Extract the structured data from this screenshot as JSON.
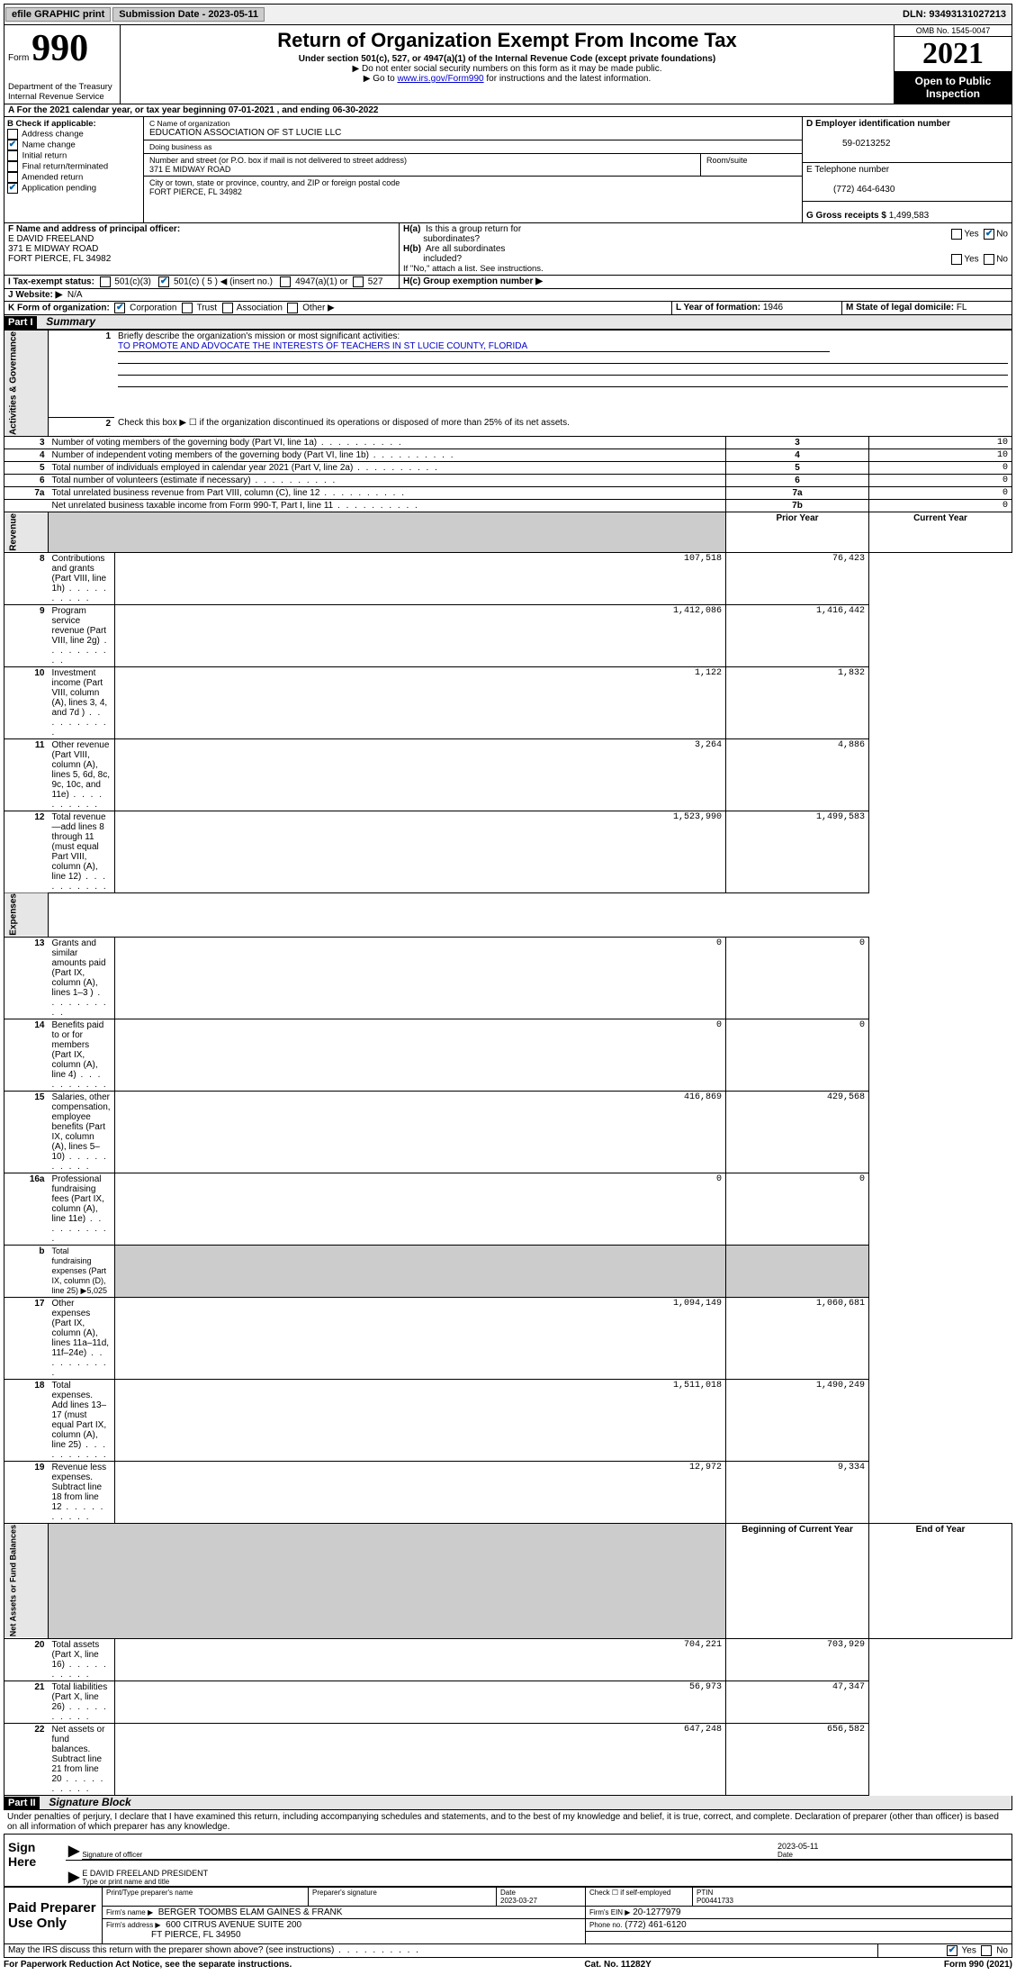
{
  "topbar": {
    "efile": "efile GRAPHIC print",
    "subdate_label": "Submission Date - 2023-05-11",
    "dln": "DLN: 93493131027213"
  },
  "header": {
    "form_word": "Form",
    "form_num": "990",
    "dept": "Department of the Treasury",
    "irs": "Internal Revenue Service",
    "title": "Return of Organization Exempt From Income Tax",
    "sub": "Under section 501(c), 527, or 4947(a)(1) of the Internal Revenue Code (except private foundations)",
    "note1": "▶ Do not enter social security numbers on this form as it may be made public.",
    "note2_pre": "▶ Go to ",
    "note2_link": "www.irs.gov/Form990",
    "note2_post": " for instructions and the latest information.",
    "omb": "OMB No. 1545-0047",
    "taxyear": "2021",
    "open1": "Open to Public",
    "open2": "Inspection"
  },
  "rowA": "A For the 2021 calendar year, or tax year beginning 07-01-2021   , and ending 06-30-2022",
  "colB": {
    "header": "B Check if applicable:",
    "items": [
      {
        "label": "Address change",
        "checked": false
      },
      {
        "label": "Name change",
        "checked": true
      },
      {
        "label": "Initial return",
        "checked": false
      },
      {
        "label": "Final return/terminated",
        "checked": false
      },
      {
        "label": "Amended return",
        "checked": false
      },
      {
        "label": "Application pending",
        "checked": true
      }
    ]
  },
  "colC": {
    "name_lbl": "C Name of organization",
    "name_val": "EDUCATION ASSOCIATION OF ST LUCIE LLC",
    "dba_lbl": "Doing business as",
    "dba_val": "",
    "street_lbl": "Number and street (or P.O. box if mail is not delivered to street address)",
    "street_val": "371 E MIDWAY ROAD",
    "suite_lbl": "Room/suite",
    "city_lbl": "City or town, state or province, country, and ZIP or foreign postal code",
    "city_val": "FORT PIERCE, FL  34982"
  },
  "colD": {
    "ein_lbl": "D Employer identification number",
    "ein_val": "59-0213252",
    "tel_lbl": "E Telephone number",
    "tel_val": "(772) 464-6430",
    "gross_lbl": "G Gross receipts $",
    "gross_val": "1,499,583"
  },
  "rowF": {
    "f_lbl": "F Name and address of principal officer:",
    "f_val1": "E DAVID FREELAND",
    "f_val2": "371 E MIDWAY ROAD",
    "f_val3": "FORT PIERCE, FL  34982",
    "i_lbl": "I    Tax-exempt status:",
    "i_501c3": "501(c)(3)",
    "i_501c": "501(c) ( 5 ) ◀ (insert no.)",
    "i_4947": "4947(a)(1) or",
    "i_527": "527",
    "j_lbl": "J   Website: ▶",
    "j_val": "N/A",
    "ha_lbl": "H(a)  Is this a group return for subordinates?",
    "hb_lbl": "H(b)  Are all subordinates included?",
    "hb_note": "If \"No,\" attach a list. See instructions.",
    "hc_lbl": "H(c)  Group exemption number ▶",
    "yes": "Yes",
    "no": "No"
  },
  "rowK": {
    "k_lbl": "K Form of organization:",
    "k_corp": "Corporation",
    "k_trust": "Trust",
    "k_assoc": "Association",
    "k_other": "Other ▶",
    "l_lbl": "L Year of formation:",
    "l_val": "1946",
    "m_lbl": "M State of legal domicile:",
    "m_val": "FL"
  },
  "part1": {
    "label": "Part I",
    "title": "Summary",
    "line1_lbl": "Briefly describe the organization's mission or most significant activities:",
    "line1_val": "TO PROMOTE AND ADVOCATE THE INTERESTS OF TEACHERS IN ST LUCIE COUNTY, FLORIDA",
    "line2": "Check this box ▶ ☐  if the organization discontinued its operations or disposed of more than 25% of its net assets.",
    "vlabels": {
      "gov": "Activities & Governance",
      "rev": "Revenue",
      "exp": "Expenses",
      "net": "Net Assets or Fund Balances"
    },
    "col_prior": "Prior Year",
    "col_current": "Current Year",
    "col_boy": "Beginning of Current Year",
    "col_eoy": "End of Year",
    "gov_lines": [
      {
        "n": "3",
        "t": "Number of voting members of the governing body (Part VI, line 1a)",
        "r": "3",
        "v": "10"
      },
      {
        "n": "4",
        "t": "Number of independent voting members of the governing body (Part VI, line 1b)",
        "r": "4",
        "v": "10"
      },
      {
        "n": "5",
        "t": "Total number of individuals employed in calendar year 2021 (Part V, line 2a)",
        "r": "5",
        "v": "0"
      },
      {
        "n": "6",
        "t": "Total number of volunteers (estimate if necessary)",
        "r": "6",
        "v": "0"
      },
      {
        "n": "7a",
        "t": "Total unrelated business revenue from Part VIII, column (C), line 12",
        "r": "7a",
        "v": "0"
      },
      {
        "n": "",
        "t": "Net unrelated business taxable income from Form 990-T, Part I, line 11",
        "r": "7b",
        "v": "0"
      }
    ],
    "rev_lines": [
      {
        "n": "8",
        "t": "Contributions and grants (Part VIII, line 1h)",
        "p": "107,518",
        "c": "76,423"
      },
      {
        "n": "9",
        "t": "Program service revenue (Part VIII, line 2g)",
        "p": "1,412,086",
        "c": "1,416,442"
      },
      {
        "n": "10",
        "t": "Investment income (Part VIII, column (A), lines 3, 4, and 7d )",
        "p": "1,122",
        "c": "1,832"
      },
      {
        "n": "11",
        "t": "Other revenue (Part VIII, column (A), lines 5, 6d, 8c, 9c, 10c, and 11e)",
        "p": "3,264",
        "c": "4,886"
      },
      {
        "n": "12",
        "t": "Total revenue—add lines 8 through 11 (must equal Part VIII, column (A), line 12)",
        "p": "1,523,990",
        "c": "1,499,583"
      }
    ],
    "exp_lines": [
      {
        "n": "13",
        "t": "Grants and similar amounts paid (Part IX, column (A), lines 1–3 )",
        "p": "0",
        "c": "0"
      },
      {
        "n": "14",
        "t": "Benefits paid to or for members (Part IX, column (A), line 4)",
        "p": "0",
        "c": "0"
      },
      {
        "n": "15",
        "t": "Salaries, other compensation, employee benefits (Part IX, column (A), lines 5–10)",
        "p": "416,869",
        "c": "429,568"
      },
      {
        "n": "16a",
        "t": "Professional fundraising fees (Part IX, column (A), line 11e)",
        "p": "0",
        "c": "0"
      },
      {
        "n": "b",
        "t": "Total fundraising expenses (Part IX, column (D), line 25) ▶5,025",
        "p": "",
        "c": "",
        "shade": true
      },
      {
        "n": "17",
        "t": "Other expenses (Part IX, column (A), lines 11a–11d, 11f–24e)",
        "p": "1,094,149",
        "c": "1,060,681"
      },
      {
        "n": "18",
        "t": "Total expenses. Add lines 13–17 (must equal Part IX, column (A), line 25)",
        "p": "1,511,018",
        "c": "1,490,249"
      },
      {
        "n": "19",
        "t": "Revenue less expenses. Subtract line 18 from line 12",
        "p": "12,972",
        "c": "9,334"
      }
    ],
    "net_lines": [
      {
        "n": "20",
        "t": "Total assets (Part X, line 16)",
        "p": "704,221",
        "c": "703,929"
      },
      {
        "n": "21",
        "t": "Total liabilities (Part X, line 26)",
        "p": "56,973",
        "c": "47,347"
      },
      {
        "n": "22",
        "t": "Net assets or fund balances. Subtract line 21 from line 20",
        "p": "647,248",
        "c": "656,582"
      }
    ]
  },
  "part2": {
    "label": "Part II",
    "title": "Signature Block",
    "perjury": "Under penalties of perjury, I declare that I have examined this return, including accompanying schedules and statements, and to the best of my knowledge and belief, it is true, correct, and complete. Declaration of preparer (other than officer) is based on all information of which preparer has any knowledge.",
    "sign_here": "Sign Here",
    "sig_of_officer": "Signature of officer",
    "sig_date": "2023-05-11",
    "date_lbl": "Date",
    "officer_name": "E DAVID FREELAND PRESIDENT",
    "type_name_lbl": "Type or print name and title",
    "paid_label": "Paid Preparer Use Only",
    "prep_name_lbl": "Print/Type preparer's name",
    "prep_sig_lbl": "Preparer's signature",
    "prep_date_lbl": "Date",
    "prep_date": "2023-03-27",
    "check_if": "Check ☐ if self-employed",
    "ptin_lbl": "PTIN",
    "ptin": "P00441733",
    "firm_name_lbl": "Firm's name    ▶",
    "firm_name": "BERGER TOOMBS ELAM GAINES & FRANK",
    "firm_ein_lbl": "Firm's EIN ▶",
    "firm_ein": "20-1277979",
    "firm_addr_lbl": "Firm's address ▶",
    "firm_addr1": "600 CITRUS AVENUE SUITE 200",
    "firm_addr2": "FT PIERCE, FL  34950",
    "phone_lbl": "Phone no.",
    "phone": "(772) 461-6120",
    "may_irs": "May the IRS discuss this return with the preparer shown above? (see instructions)"
  },
  "footer": {
    "left": "For Paperwork Reduction Act Notice, see the separate instructions.",
    "mid": "Cat. No. 11282Y",
    "right": "Form 990 (2021)"
  }
}
